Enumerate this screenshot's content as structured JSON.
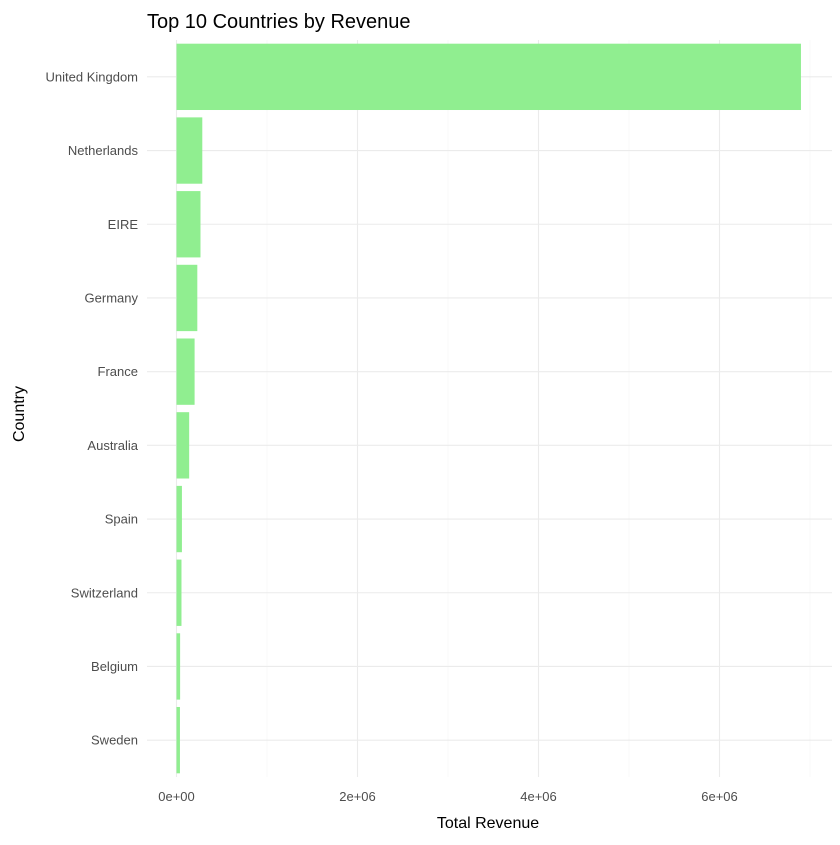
{
  "chart_data": {
    "type": "bar",
    "orientation": "horizontal",
    "title": "Top 10 Countries by Revenue",
    "xlabel": "Total Revenue",
    "ylabel": "Country",
    "categories": [
      "United Kingdom",
      "Netherlands",
      "EIRE",
      "Germany",
      "France",
      "Australia",
      "Spain",
      "Switzerland",
      "Belgium",
      "Sweden"
    ],
    "values": [
      6900000,
      285000,
      265000,
      230000,
      200000,
      140000,
      60000,
      55000,
      40000,
      38000
    ],
    "xlim": [
      0,
      7200000
    ],
    "x_ticks": [
      0,
      2000000,
      4000000,
      6000000
    ],
    "x_tick_labels": [
      "0e+00",
      "2e+06",
      "4e+06",
      "6e+06"
    ],
    "bar_color": "#90ee90",
    "grid": true,
    "legend": "none"
  }
}
